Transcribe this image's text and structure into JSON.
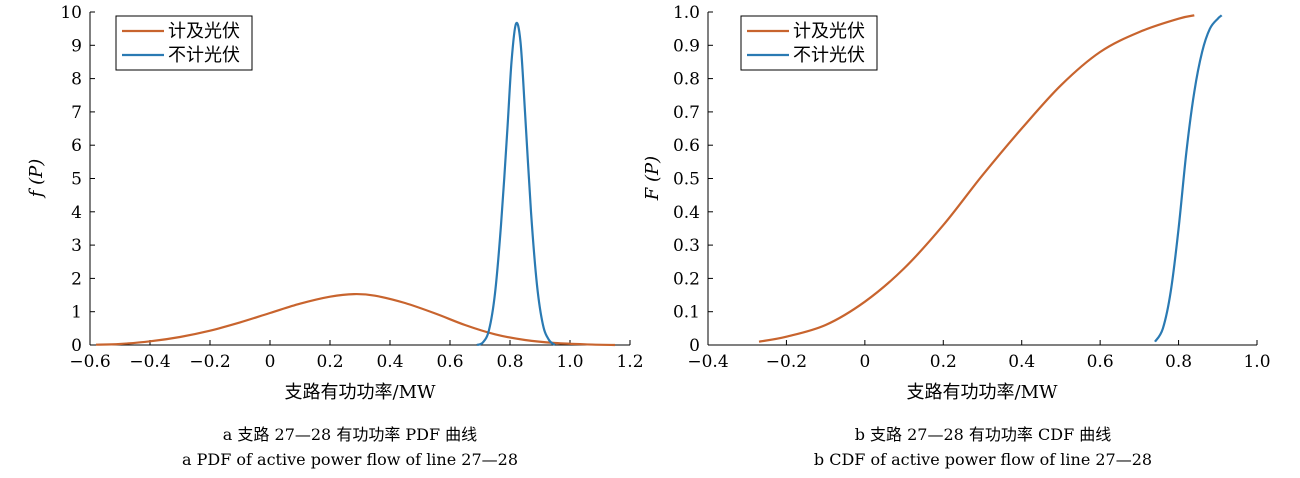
{
  "colors": {
    "with_pv": "#c8642e",
    "without_pv": "#2a7ab3",
    "axis": "#000000"
  },
  "chart_data": [
    {
      "type": "line",
      "xlabel": "支路有功功率/MW",
      "ylabel": "f (P)",
      "xlim": [
        -0.6,
        1.2
      ],
      "ylim": [
        0,
        10
      ],
      "xticks": [
        -0.6,
        -0.4,
        -0.2,
        0,
        0.2,
        0.4,
        0.6,
        0.8,
        1.0,
        1.2
      ],
      "xtick_labels": [
        "−0.6",
        "−0.4",
        "−0.2",
        "0",
        "0.2",
        "0.4",
        "0.6",
        "0.8",
        "1.0",
        "1.2"
      ],
      "yticks": [
        0,
        1,
        2,
        3,
        4,
        5,
        6,
        7,
        8,
        9,
        10
      ],
      "ytick_labels": [
        "0",
        "1",
        "2",
        "3",
        "4",
        "5",
        "6",
        "7",
        "8",
        "9",
        "10"
      ],
      "legend": "top-left",
      "grid": false,
      "caption_cn": "a  支路 27—28 有功功率 PDF 曲线",
      "caption_en": "a  PDF of active power flow of line 27—28",
      "series": [
        {
          "name": "计及光伏",
          "color": "#c8642e",
          "points": [
            [
              -0.58,
              0.01
            ],
            [
              -0.5,
              0.03
            ],
            [
              -0.4,
              0.11
            ],
            [
              -0.3,
              0.24
            ],
            [
              -0.2,
              0.43
            ],
            [
              -0.1,
              0.68
            ],
            [
              0,
              0.96
            ],
            [
              0.1,
              1.24
            ],
            [
              0.2,
              1.45
            ],
            [
              0.28,
              1.53
            ],
            [
              0.35,
              1.48
            ],
            [
              0.45,
              1.26
            ],
            [
              0.55,
              0.95
            ],
            [
              0.65,
              0.6
            ],
            [
              0.75,
              0.32
            ],
            [
              0.85,
              0.15
            ],
            [
              0.95,
              0.06
            ],
            [
              1.05,
              0.02
            ],
            [
              1.15,
              0.0
            ]
          ]
        },
        {
          "name": "不计光伏",
          "color": "#2a7ab3",
          "points": [
            [
              0.69,
              0.0
            ],
            [
              0.71,
              0.08
            ],
            [
              0.73,
              0.45
            ],
            [
              0.75,
              1.55
            ],
            [
              0.77,
              3.6
            ],
            [
              0.79,
              6.3
            ],
            [
              0.805,
              8.5
            ],
            [
              0.82,
              9.65
            ],
            [
              0.835,
              9.1
            ],
            [
              0.85,
              7.0
            ],
            [
              0.87,
              4.0
            ],
            [
              0.89,
              1.8
            ],
            [
              0.91,
              0.6
            ],
            [
              0.93,
              0.15
            ],
            [
              0.95,
              0.0
            ]
          ]
        }
      ]
    },
    {
      "type": "line",
      "xlabel": "支路有功功率/MW",
      "ylabel": "F (P)",
      "xlim": [
        -0.4,
        1.0
      ],
      "ylim": [
        0,
        1.0
      ],
      "xticks": [
        -0.4,
        -0.2,
        0,
        0.2,
        0.4,
        0.6,
        0.8,
        1.0
      ],
      "xtick_labels": [
        "−0.4",
        "−0.2",
        "0",
        "0.2",
        "0.4",
        "0.6",
        "0.8",
        "1.0"
      ],
      "yticks": [
        0,
        0.1,
        0.2,
        0.3,
        0.4,
        0.5,
        0.6,
        0.7,
        0.8,
        0.9,
        1.0
      ],
      "ytick_labels": [
        "0",
        "0.1",
        "0.2",
        "0.3",
        "0.4",
        "0.5",
        "0.6",
        "0.7",
        "0.8",
        "0.9",
        "1.0"
      ],
      "legend": "top-left",
      "grid": false,
      "caption_cn": "b  支路 27—28 有功功率 CDF 曲线",
      "caption_en": "b  CDF of active power flow of line 27—28",
      "series": [
        {
          "name": "计及光伏",
          "color": "#c8642e",
          "points": [
            [
              -0.27,
              0.01
            ],
            [
              -0.2,
              0.025
            ],
            [
              -0.1,
              0.06
            ],
            [
              0,
              0.13
            ],
            [
              0.1,
              0.23
            ],
            [
              0.2,
              0.36
            ],
            [
              0.3,
              0.51
            ],
            [
              0.4,
              0.65
            ],
            [
              0.5,
              0.78
            ],
            [
              0.6,
              0.88
            ],
            [
              0.7,
              0.94
            ],
            [
              0.8,
              0.98
            ],
            [
              0.84,
              0.99
            ]
          ]
        },
        {
          "name": "不计光伏",
          "color": "#2a7ab3",
          "points": [
            [
              0.74,
              0.01
            ],
            [
              0.76,
              0.05
            ],
            [
              0.78,
              0.16
            ],
            [
              0.8,
              0.35
            ],
            [
              0.82,
              0.58
            ],
            [
              0.84,
              0.76
            ],
            [
              0.86,
              0.88
            ],
            [
              0.88,
              0.95
            ],
            [
              0.9,
              0.98
            ],
            [
              0.91,
              0.99
            ]
          ]
        }
      ]
    }
  ]
}
